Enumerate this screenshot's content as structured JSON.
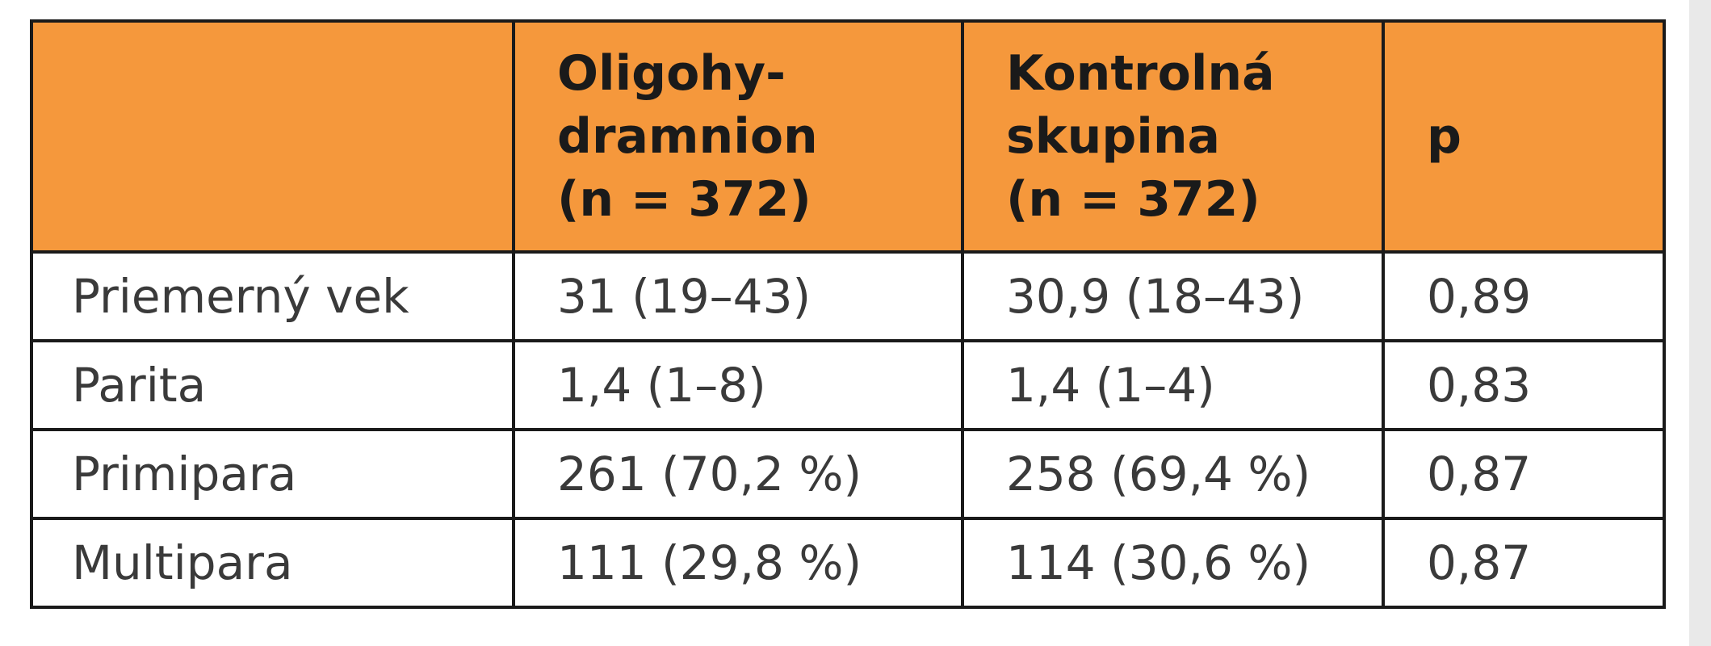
{
  "table": {
    "header": {
      "col0": "",
      "col1_lines": [
        "Oligohy-",
        "dramnion",
        "(n = 372)"
      ],
      "col2_lines": [
        "Kontrolná",
        "skupina",
        "(n = 372)"
      ],
      "col3": "p"
    },
    "rows": [
      [
        "Priemerný vek",
        "31 (19–43)",
        "30,9 (18–43)",
        "0,89"
      ],
      [
        "Parita",
        "1,4 (1–8)",
        "1,4 (1–4)",
        "0,83"
      ],
      [
        "Primipara",
        "261 (70,2 %)",
        "258 (69,4 %)",
        "0,87"
      ],
      [
        "Multipara",
        "111 (29,8 %)",
        "114 (30,6 %)",
        "0,87"
      ]
    ]
  },
  "colors": {
    "header_background": "#f5983c",
    "border": "#1a1a1a",
    "text": "#3a3a3a"
  }
}
